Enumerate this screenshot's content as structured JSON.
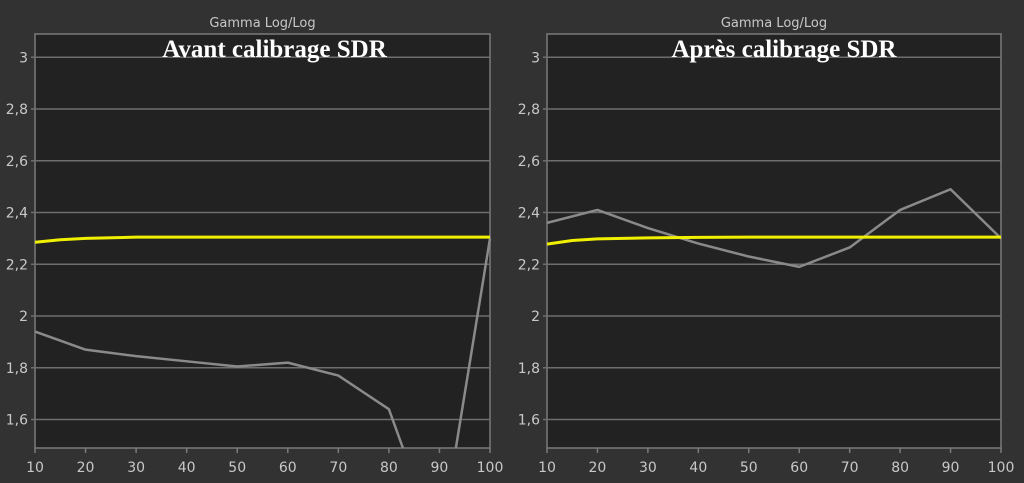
{
  "chart_data": [
    {
      "type": "line",
      "subtitle": "Gamma Log/Log",
      "title": "Avant calibrage SDR",
      "xlim": [
        10,
        100
      ],
      "ylim": [
        1.49,
        3.09
      ],
      "x_ticks": [
        10,
        20,
        30,
        40,
        50,
        60,
        70,
        80,
        90,
        100
      ],
      "y_ticks": [
        {
          "v": 3,
          "label": "3"
        },
        {
          "v": 2.8,
          "label": "2,8"
        },
        {
          "v": 2.6,
          "label": "2,6"
        },
        {
          "v": 2.4,
          "label": "2,4"
        },
        {
          "v": 2.2,
          "label": "2,2"
        },
        {
          "v": 2,
          "label": "2"
        },
        {
          "v": 1.8,
          "label": "1,8"
        },
        {
          "v": 1.6,
          "label": "1,6"
        }
      ],
      "grid": true,
      "series": [
        {
          "color": "#f0f000",
          "x": [
            10,
            15,
            20,
            30,
            40,
            50,
            60,
            70,
            80,
            90,
            100
          ],
          "values": [
            2.285,
            2.295,
            2.3,
            2.305,
            2.305,
            2.305,
            2.305,
            2.305,
            2.305,
            2.305,
            2.305
          ]
        },
        {
          "color": "#8a8a8a",
          "x": [
            10,
            20,
            30,
            40,
            50,
            60,
            70,
            80,
            90,
            100
          ],
          "values": [
            1.94,
            1.87,
            1.845,
            1.825,
            1.805,
            1.82,
            1.77,
            1.64,
            1.1,
            2.3
          ]
        }
      ]
    },
    {
      "type": "line",
      "subtitle": "Gamma Log/Log",
      "title": "Après calibrage SDR",
      "xlim": [
        10,
        100
      ],
      "ylim": [
        1.49,
        3.09
      ],
      "x_ticks": [
        10,
        20,
        30,
        40,
        50,
        60,
        70,
        80,
        90,
        100
      ],
      "y_ticks": [
        {
          "v": 3,
          "label": "3"
        },
        {
          "v": 2.8,
          "label": "2,8"
        },
        {
          "v": 2.6,
          "label": "2,6"
        },
        {
          "v": 2.4,
          "label": "2,4"
        },
        {
          "v": 2.2,
          "label": "2,2"
        },
        {
          "v": 2,
          "label": "2"
        },
        {
          "v": 1.8,
          "label": "1,8"
        },
        {
          "v": 1.6,
          "label": "1,6"
        }
      ],
      "grid": true,
      "series": [
        {
          "color": "#f0f000",
          "x": [
            10,
            15,
            20,
            30,
            40,
            50,
            60,
            70,
            80,
            90,
            100
          ],
          "values": [
            2.278,
            2.292,
            2.298,
            2.302,
            2.304,
            2.305,
            2.305,
            2.305,
            2.305,
            2.305,
            2.305
          ]
        },
        {
          "color": "#8a8a8a",
          "x": [
            10,
            20,
            30,
            40,
            50,
            60,
            70,
            80,
            90,
            100
          ],
          "values": [
            2.36,
            2.41,
            2.34,
            2.28,
            2.23,
            2.19,
            2.265,
            2.41,
            2.49,
            2.3
          ]
        }
      ]
    }
  ]
}
